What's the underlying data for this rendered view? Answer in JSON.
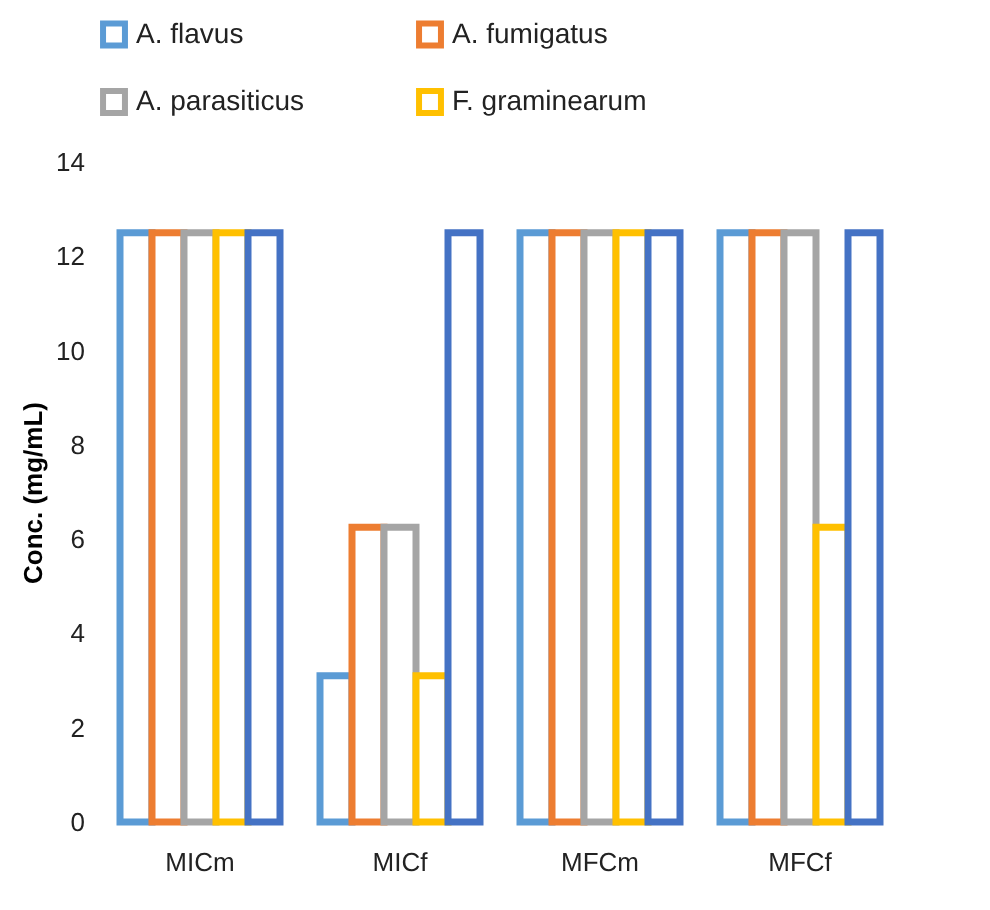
{
  "chart_data": {
    "type": "bar",
    "ylabel": "Conc.  (mg/mL)",
    "categories": [
      "MICm",
      "MICf",
      "MFCm",
      "MFCf"
    ],
    "series": [
      {
        "name": "A. flavus",
        "color": "#5b9bd5",
        "values": [
          12.5,
          3.1,
          12.5,
          12.5
        ]
      },
      {
        "name": "A. fumigatus",
        "color": "#ed7d31",
        "values": [
          12.5,
          6.25,
          12.5,
          12.5
        ]
      },
      {
        "name": "A. parasiticus",
        "color": "#a5a5a5",
        "values": [
          12.5,
          6.25,
          12.5,
          12.5
        ]
      },
      {
        "name": "F. graminearum",
        "color": "#ffc000",
        "values": [
          12.5,
          3.1,
          12.5,
          6.25
        ]
      },
      {
        "color": "#4472c4",
        "values": [
          12.5,
          12.5,
          12.5,
          12.5
        ]
      }
    ],
    "ylim": [
      0,
      14
    ],
    "yticks": [
      0,
      2,
      4,
      6,
      8,
      10,
      12,
      14
    ],
    "grid": false,
    "legend": "top"
  }
}
